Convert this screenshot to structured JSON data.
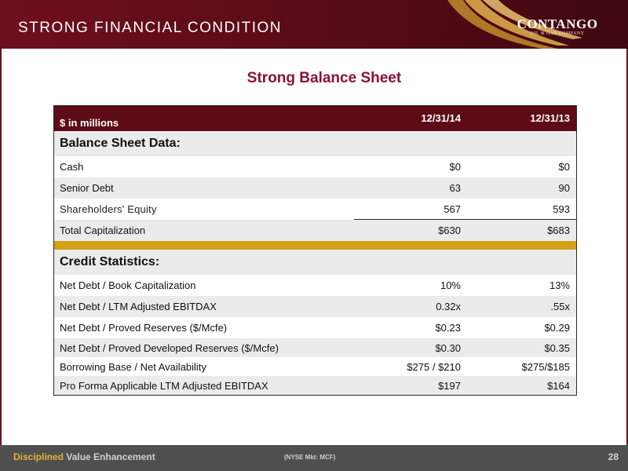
{
  "header": {
    "title": "STRONG FINANCIAL CONDITION",
    "logo_name": "CONTANGO",
    "logo_tagline": "OIL & GAS COMPANY"
  },
  "subtitle": "Strong Balance Sheet",
  "table": {
    "head": {
      "label": "$ in millions",
      "col1": "12/31/14",
      "col2": "12/31/13"
    },
    "balance_section": "Balance Sheet Data:",
    "balance_rows": [
      {
        "label": "Cash",
        "v1": "$0",
        "v2": "$0"
      },
      {
        "label": "Senior Debt",
        "v1": "63",
        "v2": "90"
      },
      {
        "label": "Shareholders' Equity",
        "v1": "567",
        "v2": "593"
      },
      {
        "label": "Total Capitalization",
        "v1": "$630",
        "v2": "$683"
      }
    ],
    "credit_section": "Credit Statistics:",
    "credit_rows": [
      {
        "label": "Net Debt / Book Capitalization",
        "v1": "10%",
        "v2": "13%"
      },
      {
        "label": "Net Debt / LTM Adjusted EBITDAX",
        "v1": "0.32x",
        "v2": ".55x"
      },
      {
        "label": "Net Debt / Proved Reserves ($/Mcfe)",
        "v1": "$0.23",
        "v2": "$0.29"
      },
      {
        "label": "Net Debt / Proved Developed Reserves ($/Mcfe)",
        "v1": "$0.30",
        "v2": "$0.35"
      },
      {
        "label": "Borrowing Base / Net Availability",
        "v1": "$275 / $210",
        "v2": "$275/$185"
      },
      {
        "label": "Pro Forma Applicable LTM Adjusted EBITDAX",
        "v1": "$197",
        "v2": "$164"
      }
    ]
  },
  "footer": {
    "left_accent": "Disciplined",
    "left_rest": " Value Enhancement",
    "center": "(NYSE Mkt: MCF)",
    "page_number": "28"
  },
  "colors": {
    "brand_maroon": "#6e0f1e",
    "subtitle_color": "#8b1134",
    "gold": "#d4a017",
    "footer_bg": "#4f4f4f"
  }
}
